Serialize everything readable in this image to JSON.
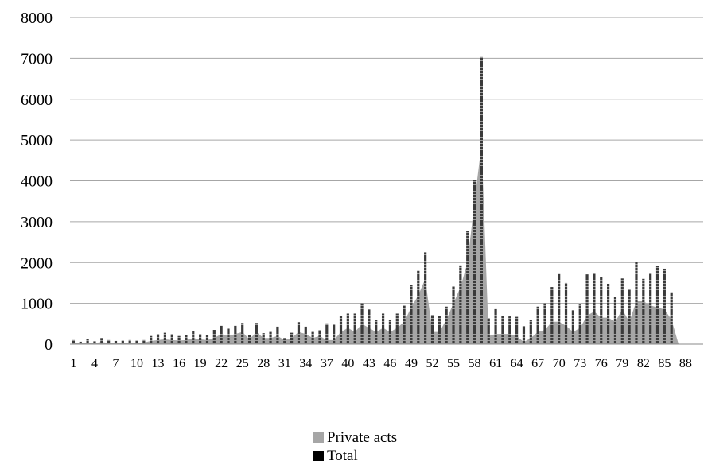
{
  "chart_data": {
    "type": "bar",
    "ylim": [
      0,
      8000
    ],
    "y_ticks": [
      "0",
      "1000",
      "2000",
      "3000",
      "4000",
      "5000",
      "6000",
      "7000",
      "8000"
    ],
    "x_tick_labels": [
      "1",
      "4",
      "7",
      "10",
      "13",
      "16",
      "19",
      "22",
      "25",
      "28",
      "31",
      "34",
      "37",
      "40",
      "43",
      "46",
      "49",
      "52",
      "55",
      "58",
      "61",
      "64",
      "67",
      "70",
      "73",
      "76",
      "79",
      "82",
      "85",
      "88"
    ],
    "categories": [
      1,
      2,
      3,
      4,
      5,
      6,
      7,
      8,
      9,
      10,
      11,
      12,
      13,
      14,
      15,
      16,
      17,
      18,
      19,
      20,
      21,
      22,
      23,
      24,
      25,
      26,
      27,
      28,
      29,
      30,
      31,
      32,
      33,
      34,
      35,
      36,
      37,
      38,
      39,
      40,
      41,
      42,
      43,
      44,
      45,
      46,
      47,
      48,
      49,
      50,
      51,
      52,
      53,
      54,
      55,
      56,
      57,
      58,
      59,
      60,
      61,
      62,
      63,
      64,
      65,
      66,
      67,
      68,
      69,
      70,
      71,
      72,
      73,
      74,
      75,
      76,
      77,
      78,
      79,
      80,
      81,
      82,
      83,
      84,
      85,
      86,
      87,
      88,
      89,
      90
    ],
    "grid": true,
    "legend_placement": "bottom-center",
    "series": [
      {
        "name": "Private acts",
        "style": "area",
        "color": "#a6a6a6",
        "values": [
          30,
          20,
          40,
          30,
          50,
          30,
          30,
          30,
          30,
          30,
          40,
          80,
          100,
          120,
          100,
          90,
          100,
          150,
          120,
          100,
          150,
          250,
          200,
          250,
          300,
          120,
          300,
          150,
          150,
          200,
          100,
          150,
          300,
          250,
          150,
          200,
          100,
          100,
          300,
          400,
          300,
          500,
          400,
          300,
          400,
          300,
          400,
          550,
          900,
          1200,
          1600,
          300,
          300,
          600,
          1000,
          1400,
          2000,
          3500,
          4900,
          200,
          250,
          250,
          250,
          200,
          50,
          150,
          300,
          350,
          550,
          550,
          450,
          300,
          400,
          700,
          800,
          650,
          650,
          550,
          850,
          550,
          1050,
          1050,
          950,
          900,
          850,
          600,
          0,
          0,
          0,
          0
        ]
      },
      {
        "name": "Total",
        "style": "bar",
        "color": "#000000",
        "pattern": "dashed-dark",
        "values": [
          100,
          60,
          120,
          70,
          150,
          100,
          80,
          90,
          100,
          90,
          100,
          200,
          250,
          280,
          250,
          200,
          220,
          330,
          250,
          220,
          350,
          450,
          380,
          450,
          520,
          220,
          520,
          270,
          300,
          430,
          150,
          280,
          540,
          430,
          300,
          340,
          510,
          500,
          700,
          750,
          750,
          1000,
          850,
          600,
          750,
          600,
          750,
          950,
          1450,
          1800,
          2250,
          720,
          700,
          920,
          1420,
          1930,
          2770,
          4020,
          7030,
          640,
          860,
          700,
          680,
          670,
          440,
          590,
          920,
          1000,
          1400,
          1720,
          1500,
          830,
          970,
          1710,
          1740,
          1650,
          1480,
          1150,
          1610,
          1350,
          2020,
          1600,
          1750,
          1920,
          1850,
          1270,
          0,
          0,
          0,
          0
        ]
      }
    ]
  }
}
